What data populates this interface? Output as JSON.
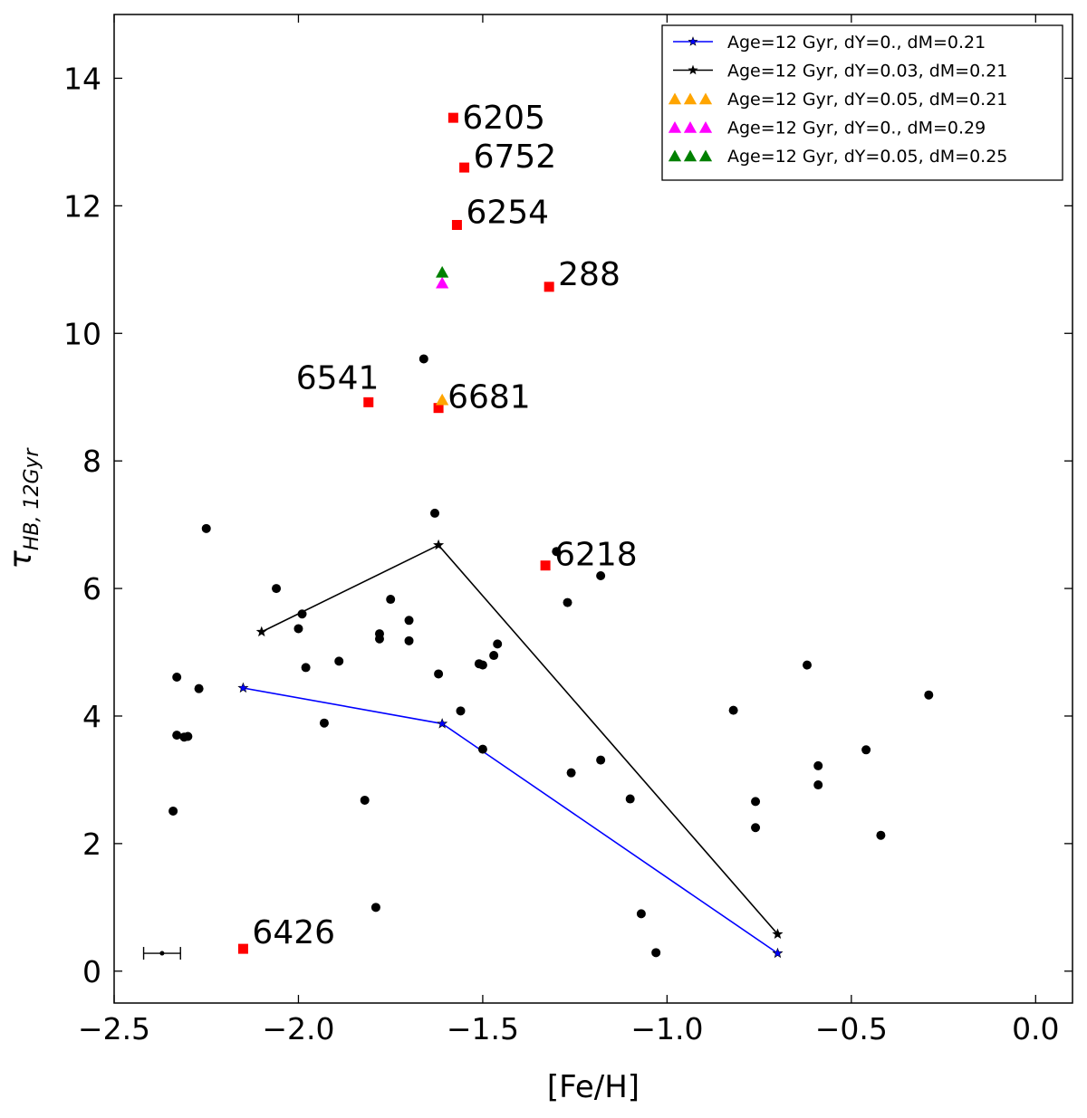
{
  "chart_data": {
    "type": "scatter",
    "title": "",
    "xlabel": "[Fe/H]",
    "ylabel": {
      "base": "τ",
      "subscript": "HB, 12Gyr"
    },
    "xlim": [
      -2.5,
      0.1
    ],
    "ylim": [
      -0.5,
      15
    ],
    "xticks": [
      -2.5,
      -2.0,
      -1.5,
      -1.0,
      -0.5,
      0.0
    ],
    "xtick_labels": [
      "−2.5",
      "−2.0",
      "−1.5",
      "−1.0",
      "−0.5",
      "0.0"
    ],
    "yticks": [
      0,
      2,
      4,
      6,
      8,
      10,
      12,
      14
    ],
    "ytick_labels": [
      "0",
      "2",
      "4",
      "6",
      "8",
      "10",
      "12",
      "14"
    ],
    "grid": false,
    "legend_position": "top-right",
    "colors": {
      "black": "#000000",
      "blue": "#0000ff",
      "red": "#ff0000",
      "orange": "#ffa500",
      "magenta": "#ff00ff",
      "green": "#008000"
    },
    "legend": [
      {
        "label": "Age=12 Gyr, dY=0., dM=0.21",
        "kind": "line-star",
        "color": "#0000ff"
      },
      {
        "label": "Age=12 Gyr, dY=0.03, dM=0.21",
        "kind": "line-star",
        "color": "#000000"
      },
      {
        "label": "Age=12 Gyr, dY=0.05, dM=0.21",
        "kind": "triangles",
        "color": "#ffa500"
      },
      {
        "label": "Age=12 Gyr, dY=0., dM=0.29",
        "kind": "triangles",
        "color": "#ff00ff"
      },
      {
        "label": "Age=12 Gyr, dY=0.05, dM=0.25",
        "kind": "triangles",
        "color": "#008000"
      }
    ],
    "series": [
      {
        "name": "Age=12 Gyr, dY=0., dM=0.21",
        "kind": "line-star",
        "color": "#0000ff",
        "x": [
          -2.15,
          -1.61,
          -0.7
        ],
        "y": [
          4.44,
          3.88,
          0.28
        ]
      },
      {
        "name": "Age=12 Gyr, dY=0.03, dM=0.21",
        "kind": "line-star",
        "color": "#000000",
        "x": [
          -2.1,
          -1.62,
          -0.7
        ],
        "y": [
          5.32,
          6.68,
          0.58
        ]
      },
      {
        "name": "Age=12 Gyr, dY=0.05, dM=0.21",
        "kind": "triangle",
        "color": "#ffa500",
        "x": [
          -1.61
        ],
        "y": [
          8.95
        ]
      },
      {
        "name": "Age=12 Gyr, dY=0., dM=0.29",
        "kind": "triangle",
        "color": "#ff00ff",
        "x": [
          -1.61
        ],
        "y": [
          10.78
        ]
      },
      {
        "name": "Age=12 Gyr, dY=0.05, dM=0.25",
        "kind": "triangle",
        "color": "#008000",
        "x": [
          -1.61
        ],
        "y": [
          10.95
        ]
      }
    ],
    "clusters": [
      {
        "label": "6205",
        "x": -1.58,
        "y": 13.38
      },
      {
        "label": "6752",
        "x": -1.55,
        "y": 12.6
      },
      {
        "label": "6254",
        "x": -1.57,
        "y": 11.7
      },
      {
        "label": "288",
        "x": -1.32,
        "y": 10.73
      },
      {
        "label": "6541",
        "x": -1.81,
        "y": 8.92
      },
      {
        "label": "6681",
        "x": -1.62,
        "y": 8.83
      },
      {
        "label": "6218",
        "x": -1.33,
        "y": 6.36
      },
      {
        "label": "6426",
        "x": -2.15,
        "y": 0.35
      }
    ],
    "points": [
      {
        "x": -2.25,
        "y": 6.94
      },
      {
        "x": -2.06,
        "y": 6.0
      },
      {
        "x": -1.99,
        "y": 5.6
      },
      {
        "x": -2.0,
        "y": 5.37
      },
      {
        "x": -1.98,
        "y": 4.76
      },
      {
        "x": -1.89,
        "y": 4.86
      },
      {
        "x": -1.93,
        "y": 3.89
      },
      {
        "x": -2.33,
        "y": 4.61
      },
      {
        "x": -2.27,
        "y": 4.43
      },
      {
        "x": -2.33,
        "y": 3.7
      },
      {
        "x": -2.31,
        "y": 3.67
      },
      {
        "x": -2.3,
        "y": 3.68
      },
      {
        "x": -2.34,
        "y": 2.51
      },
      {
        "x": -1.82,
        "y": 2.68
      },
      {
        "x": -1.79,
        "y": 1.0
      },
      {
        "x": -1.75,
        "y": 5.83
      },
      {
        "x": -1.78,
        "y": 5.29
      },
      {
        "x": -1.78,
        "y": 5.21
      },
      {
        "x": -1.7,
        "y": 5.5
      },
      {
        "x": -1.7,
        "y": 5.18
      },
      {
        "x": -1.66,
        "y": 9.6
      },
      {
        "x": -1.63,
        "y": 7.18
      },
      {
        "x": -1.62,
        "y": 4.66
      },
      {
        "x": -1.56,
        "y": 4.08
      },
      {
        "x": -1.51,
        "y": 4.82
      },
      {
        "x": -1.5,
        "y": 4.8
      },
      {
        "x": -1.47,
        "y": 4.95
      },
      {
        "x": -1.46,
        "y": 5.13
      },
      {
        "x": -1.5,
        "y": 3.48
      },
      {
        "x": -1.3,
        "y": 6.58
      },
      {
        "x": -1.27,
        "y": 5.78
      },
      {
        "x": -1.18,
        "y": 6.2
      },
      {
        "x": -1.26,
        "y": 3.11
      },
      {
        "x": -1.18,
        "y": 3.31
      },
      {
        "x": -1.1,
        "y": 2.7
      },
      {
        "x": -1.07,
        "y": 0.9
      },
      {
        "x": -1.03,
        "y": 0.29
      },
      {
        "x": -0.82,
        "y": 4.09
      },
      {
        "x": -0.76,
        "y": 2.66
      },
      {
        "x": -0.76,
        "y": 2.25
      },
      {
        "x": -0.62,
        "y": 4.8
      },
      {
        "x": -0.59,
        "y": 3.22
      },
      {
        "x": -0.59,
        "y": 2.92
      },
      {
        "x": -0.46,
        "y": 3.47
      },
      {
        "x": -0.42,
        "y": 2.13
      },
      {
        "x": -0.29,
        "y": 4.33
      }
    ],
    "error_bar": {
      "x": -2.37,
      "y": 0.28,
      "x_err": 0.05
    }
  }
}
